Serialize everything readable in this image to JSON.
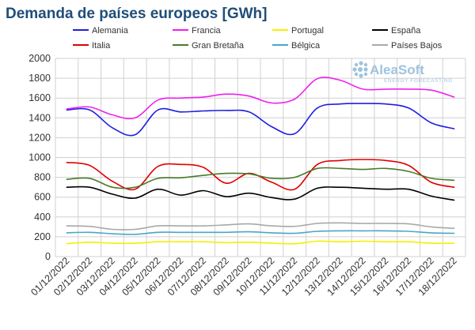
{
  "logo": {
    "name": "AleaSoft",
    "tagline": "ENERGY FORECASTING"
  },
  "chart_data": {
    "type": "line",
    "title": "Demanda de países europeos [GWh]",
    "xlabel": "",
    "ylabel": "",
    "ylim": [
      0,
      2000
    ],
    "yticks": [
      0,
      200,
      400,
      600,
      800,
      1000,
      1200,
      1400,
      1600,
      1800,
      2000
    ],
    "grid": true,
    "legend_position": "top",
    "categories": [
      "01/12/2022",
      "02/12/2022",
      "03/12/2022",
      "04/12/2022",
      "05/12/2022",
      "06/12/2022",
      "07/12/2022",
      "08/12/2022",
      "09/12/2022",
      "10/12/2022",
      "11/12/2022",
      "12/12/2022",
      "13/12/2022",
      "14/12/2022",
      "15/12/2022",
      "16/12/2022",
      "17/12/2022",
      "18/12/2022"
    ],
    "series": [
      {
        "name": "Alemania",
        "color": "#1f1fe0",
        "values": [
          1480,
          1480,
          1300,
          1230,
          1480,
          1460,
          1470,
          1475,
          1460,
          1310,
          1240,
          1500,
          1540,
          1545,
          1540,
          1500,
          1350,
          1290
        ]
      },
      {
        "name": "Francia",
        "color": "#f01ff0",
        "values": [
          1490,
          1510,
          1430,
          1400,
          1580,
          1600,
          1610,
          1640,
          1620,
          1550,
          1590,
          1795,
          1780,
          1690,
          1690,
          1690,
          1680,
          1610
        ]
      },
      {
        "name": "Portugal",
        "color": "#f5f000",
        "values": [
          130,
          145,
          135,
          135,
          150,
          150,
          150,
          140,
          145,
          135,
          130,
          155,
          150,
          155,
          150,
          150,
          135,
          135
        ]
      },
      {
        "name": "España",
        "color": "#000000",
        "values": [
          700,
          700,
          630,
          590,
          680,
          620,
          665,
          605,
          640,
          595,
          580,
          690,
          700,
          690,
          680,
          680,
          610,
          570
        ]
      },
      {
        "name": "Italia",
        "color": "#e00000",
        "values": [
          950,
          920,
          760,
          680,
          910,
          930,
          900,
          740,
          840,
          750,
          680,
          930,
          970,
          980,
          970,
          920,
          750,
          700
        ]
      },
      {
        "name": "Gran Bretaña",
        "color": "#4a7a2a",
        "values": [
          780,
          790,
          700,
          700,
          790,
          795,
          820,
          840,
          835,
          790,
          800,
          890,
          890,
          880,
          890,
          860,
          790,
          770
        ]
      },
      {
        "name": "Bélgica",
        "color": "#4aa6c8",
        "values": [
          240,
          245,
          230,
          225,
          245,
          245,
          245,
          245,
          250,
          240,
          235,
          255,
          260,
          260,
          260,
          255,
          240,
          235
        ]
      },
      {
        "name": "Países Bajos",
        "color": "#a8a8a8",
        "values": [
          310,
          305,
          275,
          275,
          310,
          310,
          310,
          320,
          330,
          310,
          305,
          335,
          340,
          335,
          335,
          330,
          300,
          285
        ]
      }
    ]
  }
}
